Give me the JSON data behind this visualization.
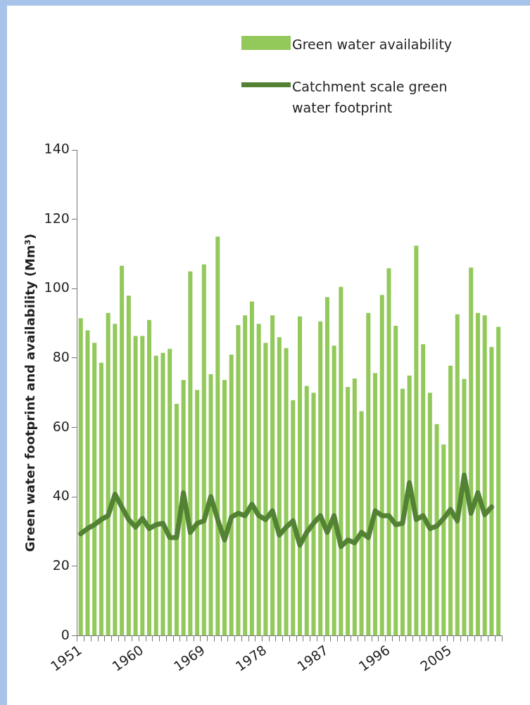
{
  "chart_data": {
    "type": "bar",
    "ylabel": "Green water footprint and availability (Mm³)",
    "categories": [
      "1951",
      null,
      null,
      null,
      null,
      null,
      null,
      null,
      null,
      "1960",
      null,
      null,
      null,
      null,
      null,
      null,
      null,
      null,
      "1969",
      null,
      null,
      null,
      null,
      null,
      null,
      null,
      null,
      "1978",
      null,
      null,
      null,
      null,
      null,
      null,
      null,
      null,
      "1987",
      null,
      null,
      null,
      null,
      null,
      null,
      null,
      null,
      "1996",
      null,
      null,
      null,
      null,
      null,
      null,
      null,
      null,
      "2005",
      null,
      null,
      null,
      null,
      null,
      null,
      null
    ],
    "series": [
      {
        "name": "Green water availability",
        "color": "#92c95a",
        "values": [
          91.5,
          88,
          84.4,
          78.7,
          93,
          89.9,
          106.6,
          98,
          86.4,
          86.4,
          91,
          80.7,
          81.5,
          82.7,
          66.8,
          73.7,
          105,
          70.8,
          107,
          75.4,
          115,
          73.7,
          81,
          89.5,
          92.3,
          96.3,
          89.9,
          84.4,
          92.3,
          86,
          82.9,
          67.9,
          92,
          72,
          70,
          90.6,
          97.6,
          83.6,
          100.5,
          71.7,
          74.1,
          64.7,
          93,
          75.7,
          98.2,
          105.9,
          89.3,
          71.2,
          75,
          112.4,
          84,
          70,
          61,
          55.1,
          77.8,
          92.6,
          74,
          106.1,
          93,
          92.3,
          83.2,
          89
        ]
      },
      {
        "name": "Catchment scale green water footprint",
        "type": "line",
        "color": "#548235",
        "values": [
          29.4,
          30.9,
          32,
          33.5,
          34.6,
          40.8,
          37.1,
          33.5,
          31.3,
          33.8,
          30.9,
          32,
          32.4,
          28.3,
          28.3,
          41.2,
          29.8,
          32.4,
          33.1,
          40.1,
          33.5,
          27.6,
          34.2,
          35.3,
          34.6,
          37.9,
          34.6,
          33.5,
          36,
          29,
          31.3,
          33.1,
          26.1,
          29.8,
          32.4,
          34.6,
          29.8,
          34.6,
          25.7,
          27.6,
          26.8,
          29.8,
          28.3,
          36,
          34.6,
          34.6,
          32,
          32.4,
          44.1,
          33.5,
          34.6,
          30.9,
          31.6,
          33.8,
          36.4,
          33.1,
          46.3,
          35.3,
          41.2,
          34.9,
          37.1,
          null
        ]
      }
    ],
    "ylim": [
      0,
      140
    ],
    "yticks": [
      0,
      20,
      40,
      60,
      80,
      100,
      120,
      140
    ],
    "grid": false,
    "legend": "top right",
    "marker": "none",
    "line_style": "solid"
  }
}
